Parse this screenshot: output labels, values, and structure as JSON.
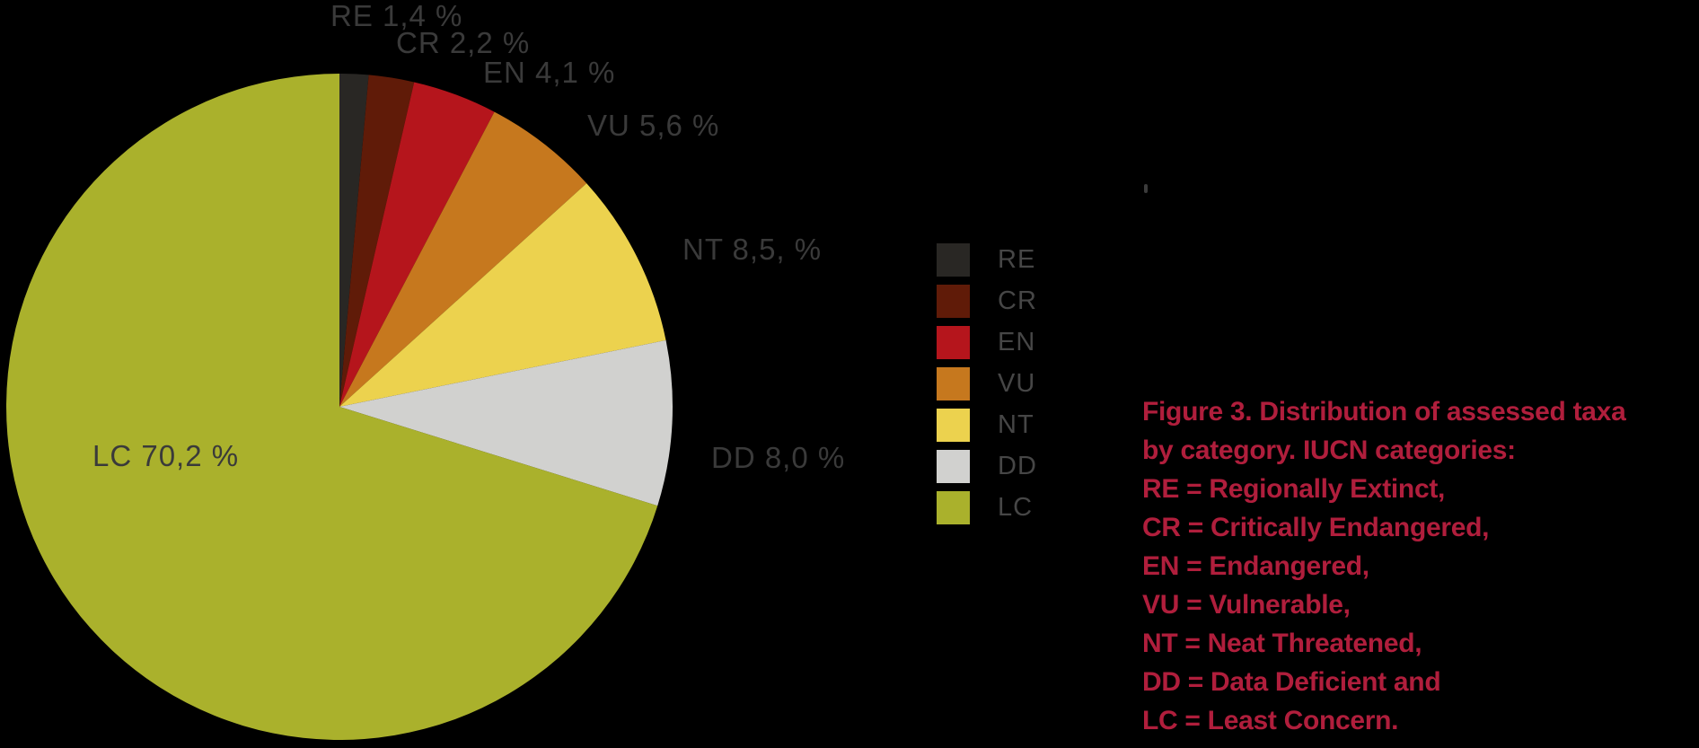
{
  "colors": {
    "background": "#000000",
    "slice_label_text": "#3a3a3a",
    "legend_text": "#464646",
    "caption_red": "#b01e3c"
  },
  "chart_data": {
    "type": "pie",
    "title": "",
    "unit": "%",
    "start_angle_deg": 0,
    "direction": "clockwise",
    "legend_position": "right",
    "categories": [
      "RE",
      "CR",
      "EN",
      "VU",
      "NT",
      "DD",
      "LC"
    ],
    "values": [
      1.4,
      2.2,
      4.1,
      5.6,
      8.5,
      8.0,
      70.2
    ],
    "slices": [
      {
        "code": "RE",
        "label": "RE 1,4 %",
        "value": 1.4,
        "color": "#292724"
      },
      {
        "code": "CR",
        "label": "CR 2,2 %",
        "value": 2.2,
        "color": "#601b08"
      },
      {
        "code": "EN",
        "label": "EN 4,1 %",
        "value": 4.1,
        "color": "#b5151c"
      },
      {
        "code": "VU",
        "label": "VU 5,6 %",
        "value": 5.6,
        "color": "#c6781e"
      },
      {
        "code": "NT",
        "label": "NT 8,5, %",
        "value": 8.5,
        "color": "#ecd24e"
      },
      {
        "code": "DD",
        "label": "DD 8,0 %",
        "value": 8.0,
        "color": "#d1d1cf"
      },
      {
        "code": "LC",
        "label": "LC 70,2 %",
        "value": 70.2,
        "color": "#aab12c"
      }
    ]
  },
  "caption": {
    "lines": [
      "Figure 3. Distribution of assessed taxa",
      "by category. IUCN categories:",
      "RE = Regionally Extinct,",
      "CR = Critically Endangered,",
      "EN = Endangered,",
      "VU = Vulnerable,",
      "NT = Neat Threatened,",
      "DD = Data Deficient and",
      "LC = Least Concern."
    ]
  }
}
